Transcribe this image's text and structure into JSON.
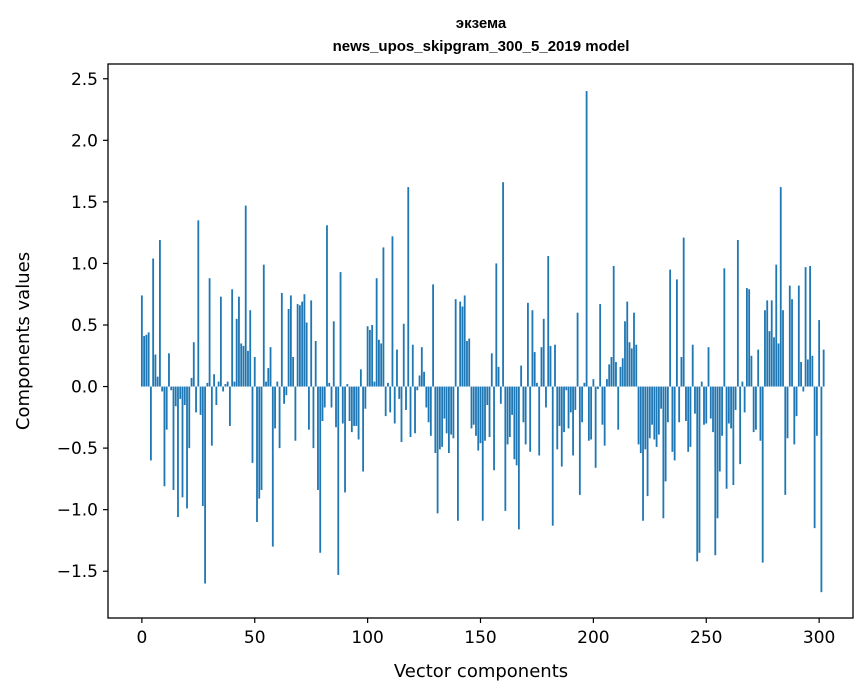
{
  "chart_data": {
    "type": "bar",
    "title": "экзема",
    "subtitle": "news_upos_skipgram_300_5_2019 model",
    "xlabel": "Vector components",
    "ylabel": "Components values",
    "xlim": [
      -15,
      315
    ],
    "ylim": [
      -1.88,
      2.62
    ],
    "xticks": [
      0,
      50,
      100,
      150,
      200,
      250,
      300
    ],
    "xtick_labels": [
      "0",
      "50",
      "100",
      "150",
      "200",
      "250",
      "300"
    ],
    "yticks": [
      -1.5,
      -1.0,
      -0.5,
      0.0,
      0.5,
      1.0,
      1.5,
      2.0,
      2.5
    ],
    "ytick_labels": [
      "−1.5",
      "−1.0",
      "−0.5",
      "0.0",
      "0.5",
      "1.0",
      "1.5",
      "2.0",
      "2.5"
    ],
    "bar_color": "#1f77b4",
    "grid": false,
    "values": [
      0.74,
      0.41,
      0.42,
      0.44,
      -0.6,
      1.04,
      0.26,
      0.08,
      1.19,
      -0.04,
      -0.81,
      -0.35,
      0.27,
      -0.03,
      -0.84,
      -0.16,
      -1.06,
      -0.1,
      -0.9,
      -0.15,
      -0.99,
      -0.5,
      0.07,
      0.36,
      -0.21,
      1.35,
      -0.23,
      -0.97,
      -1.6,
      0.03,
      0.88,
      -0.48,
      0.1,
      -0.15,
      0.04,
      0.73,
      -0.04,
      0.02,
      0.04,
      -0.32,
      0.79,
      0.04,
      0.55,
      0.73,
      0.35,
      0.33,
      1.47,
      0.29,
      0.62,
      -0.62,
      0.24,
      -1.1,
      -0.91,
      -0.84,
      0.99,
      0.04,
      0.15,
      0.32,
      -1.3,
      -0.34,
      0.04,
      -0.5,
      0.76,
      -0.14,
      -0.07,
      0.63,
      0.74,
      0.24,
      -0.44,
      0.67,
      0.66,
      0.69,
      0.75,
      0.52,
      -0.35,
      0.7,
      -0.5,
      0.37,
      -0.84,
      -1.35,
      -0.28,
      -0.17,
      1.31,
      0.03,
      -0.17,
      0.53,
      -0.33,
      -1.53,
      0.93,
      -0.3,
      -0.86,
      0.02,
      -0.28,
      -0.37,
      -0.32,
      -0.32,
      -0.43,
      0.14,
      -0.69,
      -0.18,
      0.49,
      0.46,
      0.5,
      0.04,
      0.88,
      0.38,
      0.35,
      1.13,
      -0.24,
      0.03,
      -0.21,
      1.22,
      -0.3,
      0.3,
      -0.1,
      -0.45,
      0.51,
      -0.19,
      1.62,
      -0.41,
      0.34,
      -0.38,
      -0.03,
      0.09,
      0.32,
      0.12,
      -0.17,
      -0.29,
      -0.4,
      0.83,
      -0.54,
      -1.03,
      -0.51,
      -0.49,
      -0.26,
      -0.38,
      -0.54,
      -0.39,
      -0.42,
      0.71,
      -1.09,
      0.69,
      0.65,
      0.74,
      0.37,
      0.39,
      -0.34,
      -0.31,
      -0.4,
      -0.52,
      -0.46,
      -1.09,
      -0.44,
      -0.15,
      -0.41,
      0.27,
      -0.68,
      1.0,
      0.16,
      -0.14,
      1.66,
      -1.01,
      -0.47,
      -0.41,
      -0.23,
      -0.59,
      -0.64,
      -1.16,
      0.17,
      -0.29,
      -0.47,
      0.68,
      -0.53,
      0.62,
      0.28,
      0.03,
      -0.56,
      0.32,
      0.55,
      -0.17,
      1.06,
      0.33,
      -1.13,
      0.34,
      -0.51,
      -0.32,
      -0.65,
      -0.37,
      -0.03,
      -0.34,
      -0.21,
      -0.56,
      -0.19,
      0.6,
      -0.88,
      -0.29,
      0.03,
      2.4,
      -0.44,
      -0.43,
      0.06,
      -0.66,
      -0.02,
      0.67,
      -0.31,
      -0.48,
      0.06,
      0.18,
      0.24,
      0.98,
      0.2,
      -0.35,
      0.16,
      0.23,
      0.53,
      0.69,
      0.36,
      0.31,
      0.6,
      0.34,
      -0.47,
      -0.54,
      -1.09,
      -0.51,
      -0.89,
      -0.42,
      -0.31,
      -0.43,
      -0.49,
      -0.39,
      -0.18,
      -1.07,
      -0.77,
      -0.29,
      0.95,
      -0.53,
      -0.6,
      0.87,
      -0.29,
      0.24,
      1.21,
      -0.28,
      -0.53,
      -0.49,
      0.34,
      -0.22,
      -1.42,
      -1.35,
      0.04,
      -0.31,
      -0.3,
      0.32,
      -0.26,
      -0.37,
      -1.37,
      -1.07,
      -0.69,
      -0.4,
      0.96,
      -0.83,
      -0.3,
      -0.34,
      -0.8,
      -0.19,
      1.19,
      -0.63,
      0.04,
      -0.21,
      0.8,
      0.79,
      0.25,
      -0.37,
      -0.35,
      0.3,
      -0.44,
      -1.43,
      0.62,
      0.7,
      0.45,
      0.7,
      0.4,
      0.99,
      0.35,
      1.62,
      0.62,
      -0.88,
      -0.42,
      0.82,
      0.71,
      -0.47,
      -0.24,
      0.82,
      0.2,
      -0.04,
      0.97,
      0.22,
      0.98,
      0.25,
      -1.15,
      -0.4,
      0.54,
      -1.67,
      0.3
    ]
  }
}
